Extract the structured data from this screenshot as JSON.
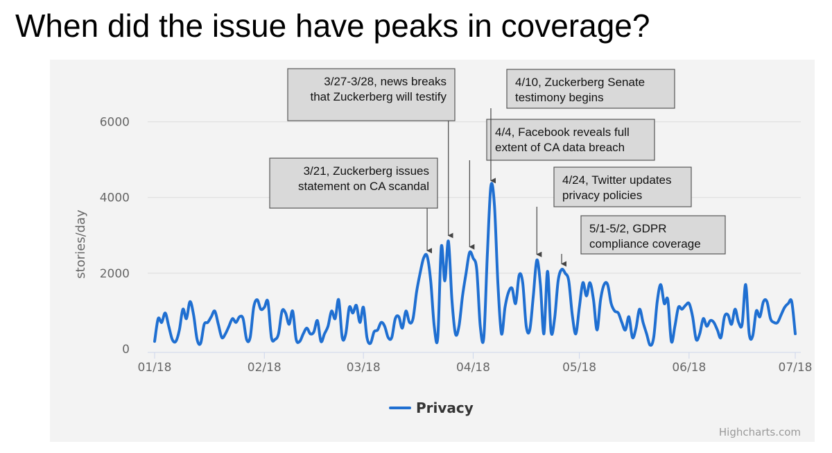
{
  "title": "When did the issue have peaks in coverage?",
  "chart_data": {
    "type": "line",
    "ylabel": "stories/day",
    "xlabel": "",
    "ylim": [
      0,
      7000
    ],
    "yticks": [
      0,
      2000,
      4000,
      6000
    ],
    "xticks": [
      {
        "date": "2018-01-01",
        "label": "01/18"
      },
      {
        "date": "2018-02-01",
        "label": "02/18"
      },
      {
        "date": "2018-03-01",
        "label": "03/18"
      },
      {
        "date": "2018-04-01",
        "label": "04/18"
      },
      {
        "date": "2018-05-01",
        "label": "05/18"
      },
      {
        "date": "2018-06-01",
        "label": "06/18"
      },
      {
        "date": "2018-07-01",
        "label": "07/18"
      }
    ],
    "grid": "horizontal",
    "legend": "bottom-center",
    "credit": "Highcharts.com",
    "line_color": "#1f6fd1",
    "series": [
      {
        "name": "Privacy",
        "points": [
          [
            "2018-01-01",
            200
          ],
          [
            "2018-01-02",
            800
          ],
          [
            "2018-01-03",
            700
          ],
          [
            "2018-01-04",
            950
          ],
          [
            "2018-01-05",
            600
          ],
          [
            "2018-01-06",
            250
          ],
          [
            "2018-01-07",
            200
          ],
          [
            "2018-01-08",
            500
          ],
          [
            "2018-01-09",
            1050
          ],
          [
            "2018-01-10",
            800
          ],
          [
            "2018-01-11",
            1250
          ],
          [
            "2018-01-12",
            900
          ],
          [
            "2018-01-13",
            250
          ],
          [
            "2018-01-14",
            150
          ],
          [
            "2018-01-15",
            650
          ],
          [
            "2018-01-16",
            700
          ],
          [
            "2018-01-17",
            850
          ],
          [
            "2018-01-18",
            1000
          ],
          [
            "2018-01-19",
            650
          ],
          [
            "2018-01-20",
            300
          ],
          [
            "2018-01-21",
            400
          ],
          [
            "2018-01-22",
            600
          ],
          [
            "2018-01-23",
            800
          ],
          [
            "2018-01-24",
            700
          ],
          [
            "2018-01-25",
            850
          ],
          [
            "2018-01-26",
            800
          ],
          [
            "2018-01-27",
            250
          ],
          [
            "2018-01-28",
            300
          ],
          [
            "2018-01-29",
            1100
          ],
          [
            "2018-01-30",
            1300
          ],
          [
            "2018-01-31",
            1050
          ],
          [
            "2018-02-01",
            1100
          ],
          [
            "2018-02-02",
            1250
          ],
          [
            "2018-02-03",
            300
          ],
          [
            "2018-02-04",
            250
          ],
          [
            "2018-02-05",
            400
          ],
          [
            "2018-02-06",
            1000
          ],
          [
            "2018-02-07",
            950
          ],
          [
            "2018-02-08",
            650
          ],
          [
            "2018-02-09",
            1000
          ],
          [
            "2018-02-10",
            250
          ],
          [
            "2018-02-11",
            200
          ],
          [
            "2018-02-12",
            400
          ],
          [
            "2018-02-13",
            550
          ],
          [
            "2018-02-14",
            400
          ],
          [
            "2018-02-15",
            450
          ],
          [
            "2018-02-16",
            750
          ],
          [
            "2018-02-17",
            200
          ],
          [
            "2018-02-18",
            400
          ],
          [
            "2018-02-19",
            600
          ],
          [
            "2018-02-20",
            1000
          ],
          [
            "2018-02-21",
            800
          ],
          [
            "2018-02-22",
            1300
          ],
          [
            "2018-02-23",
            300
          ],
          [
            "2018-02-24",
            400
          ],
          [
            "2018-02-25",
            1100
          ],
          [
            "2018-02-26",
            950
          ],
          [
            "2018-02-27",
            1150
          ],
          [
            "2018-02-28",
            700
          ],
          [
            "2018-03-01",
            1100
          ],
          [
            "2018-03-02",
            300
          ],
          [
            "2018-03-03",
            150
          ],
          [
            "2018-03-04",
            450
          ],
          [
            "2018-03-05",
            500
          ],
          [
            "2018-03-06",
            700
          ],
          [
            "2018-03-07",
            600
          ],
          [
            "2018-03-08",
            300
          ],
          [
            "2018-03-09",
            300
          ],
          [
            "2018-03-10",
            800
          ],
          [
            "2018-03-11",
            850
          ],
          [
            "2018-03-12",
            550
          ],
          [
            "2018-03-13",
            1000
          ],
          [
            "2018-03-14",
            700
          ],
          [
            "2018-03-15",
            800
          ],
          [
            "2018-03-16",
            1500
          ],
          [
            "2018-03-17",
            2000
          ],
          [
            "2018-03-18",
            2400
          ],
          [
            "2018-03-19",
            2450
          ],
          [
            "2018-03-20",
            1800
          ],
          [
            "2018-03-21",
            600
          ],
          [
            "2018-03-22",
            300
          ],
          [
            "2018-03-23",
            2700
          ],
          [
            "2018-03-24",
            1800
          ],
          [
            "2018-03-25",
            2850
          ],
          [
            "2018-03-26",
            1300
          ],
          [
            "2018-03-27",
            400
          ],
          [
            "2018-03-28",
            600
          ],
          [
            "2018-03-29",
            1400
          ],
          [
            "2018-03-30",
            2000
          ],
          [
            "2018-03-31",
            2550
          ],
          [
            "2018-04-01",
            2400
          ],
          [
            "2018-04-02",
            2100
          ],
          [
            "2018-04-03",
            600
          ],
          [
            "2018-04-04",
            300
          ],
          [
            "2018-04-05",
            2500
          ],
          [
            "2018-04-06",
            4300
          ],
          [
            "2018-04-07",
            3800
          ],
          [
            "2018-04-08",
            1700
          ],
          [
            "2018-04-09",
            400
          ],
          [
            "2018-04-10",
            1100
          ],
          [
            "2018-04-11",
            1500
          ],
          [
            "2018-04-12",
            1600
          ],
          [
            "2018-04-13",
            1200
          ],
          [
            "2018-04-14",
            1950
          ],
          [
            "2018-04-15",
            1750
          ],
          [
            "2018-04-16",
            600
          ],
          [
            "2018-04-17",
            500
          ],
          [
            "2018-04-18",
            1400
          ],
          [
            "2018-04-19",
            2350
          ],
          [
            "2018-04-20",
            1700
          ],
          [
            "2018-04-21",
            400
          ],
          [
            "2018-04-22",
            2050
          ],
          [
            "2018-04-23",
            450
          ],
          [
            "2018-04-24",
            800
          ],
          [
            "2018-04-25",
            1800
          ],
          [
            "2018-04-26",
            2100
          ],
          [
            "2018-04-27",
            2000
          ],
          [
            "2018-04-28",
            1800
          ],
          [
            "2018-04-29",
            900
          ],
          [
            "2018-04-30",
            400
          ],
          [
            "2018-05-01",
            1100
          ],
          [
            "2018-05-02",
            1750
          ],
          [
            "2018-05-03",
            1400
          ],
          [
            "2018-05-04",
            1750
          ],
          [
            "2018-05-05",
            1300
          ],
          [
            "2018-05-06",
            500
          ],
          [
            "2018-05-07",
            1300
          ],
          [
            "2018-05-08",
            1700
          ],
          [
            "2018-05-09",
            1700
          ],
          [
            "2018-05-10",
            1200
          ],
          [
            "2018-05-11",
            1000
          ],
          [
            "2018-05-12",
            950
          ],
          [
            "2018-05-13",
            700
          ],
          [
            "2018-05-14",
            500
          ],
          [
            "2018-05-15",
            850
          ],
          [
            "2018-05-16",
            300
          ],
          [
            "2018-05-17",
            550
          ],
          [
            "2018-05-18",
            1050
          ],
          [
            "2018-05-19",
            700
          ],
          [
            "2018-05-20",
            400
          ],
          [
            "2018-05-21",
            100
          ],
          [
            "2018-05-22",
            300
          ],
          [
            "2018-05-23",
            1250
          ],
          [
            "2018-05-24",
            1700
          ],
          [
            "2018-05-25",
            1200
          ],
          [
            "2018-05-26",
            1300
          ],
          [
            "2018-05-27",
            200
          ],
          [
            "2018-05-28",
            600
          ],
          [
            "2018-05-29",
            1100
          ],
          [
            "2018-05-30",
            1050
          ],
          [
            "2018-05-31",
            1150
          ],
          [
            "2018-06-01",
            1200
          ],
          [
            "2018-06-02",
            850
          ],
          [
            "2018-06-03",
            250
          ],
          [
            "2018-06-04",
            400
          ],
          [
            "2018-06-05",
            800
          ],
          [
            "2018-06-06",
            600
          ],
          [
            "2018-06-07",
            750
          ],
          [
            "2018-06-08",
            700
          ],
          [
            "2018-06-09",
            500
          ],
          [
            "2018-06-10",
            300
          ],
          [
            "2018-06-11",
            850
          ],
          [
            "2018-06-12",
            900
          ],
          [
            "2018-06-13",
            650
          ],
          [
            "2018-06-14",
            1050
          ],
          [
            "2018-06-15",
            700
          ],
          [
            "2018-06-16",
            650
          ],
          [
            "2018-06-17",
            1700
          ],
          [
            "2018-06-18",
            400
          ],
          [
            "2018-06-19",
            350
          ],
          [
            "2018-06-20",
            1000
          ],
          [
            "2018-06-21",
            850
          ],
          [
            "2018-06-22",
            1250
          ],
          [
            "2018-06-23",
            1250
          ],
          [
            "2018-06-24",
            800
          ],
          [
            "2018-06-25",
            700
          ],
          [
            "2018-06-26",
            700
          ],
          [
            "2018-06-27",
            900
          ],
          [
            "2018-06-28",
            1100
          ],
          [
            "2018-06-29",
            1200
          ],
          [
            "2018-06-30",
            1250
          ],
          [
            "2018-07-01",
            400
          ]
        ]
      }
    ],
    "annotations": [
      {
        "text": [
          "3/21, Zuckerberg issues",
          "statement on CA scandal"
        ],
        "date": "2018-03-19",
        "value": 2450
      },
      {
        "text": [
          "3/27-3/28, news breaks",
          "that Zuckerberg will testify"
        ],
        "date": "2018-03-25",
        "value": 2850
      },
      {
        "text": [
          "4/4, Facebook reveals full",
          "extent of CA data breach"
        ],
        "date": "2018-03-31",
        "value": 2550
      },
      {
        "text": [
          "4/10, Zuckerberg Senate",
          "testimony begins"
        ],
        "date": "2018-04-06",
        "value": 4300
      },
      {
        "text": [
          "4/24, Twitter updates",
          "privacy policies"
        ],
        "date": "2018-04-19",
        "value": 2350
      },
      {
        "text": [
          "5/1-5/2, GDPR",
          "compliance coverage"
        ],
        "date": "2018-04-26",
        "value": 2100
      }
    ]
  }
}
